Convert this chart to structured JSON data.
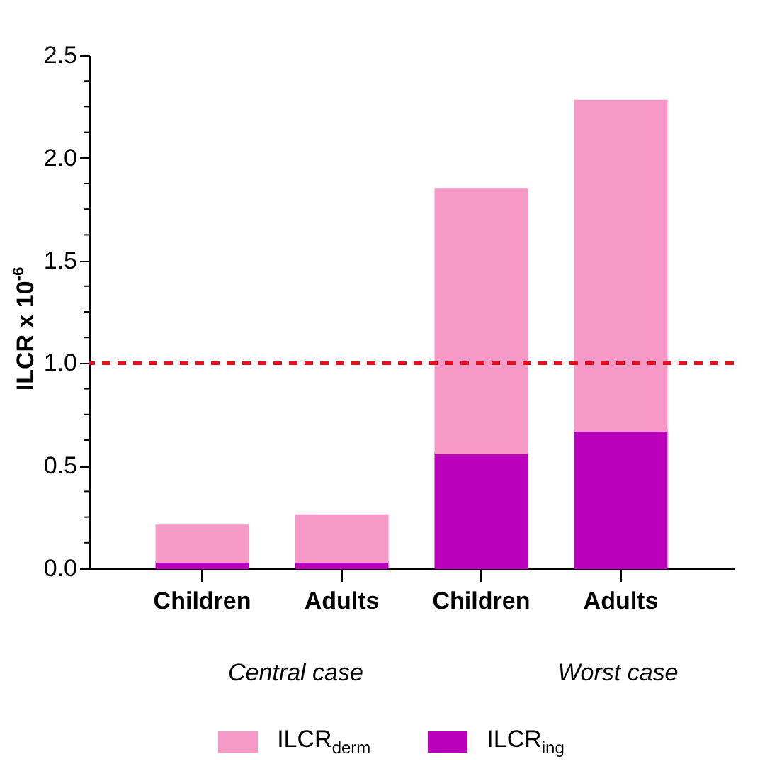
{
  "chart_data": {
    "type": "bar",
    "stacked": true,
    "ylabel": "ILCR x 10$^{-6}$",
    "categories": [
      "Children",
      "Adults",
      "Children",
      "Adults"
    ],
    "series": [
      {
        "name": "ILCR$_{ing}$",
        "color": "#bb00bb",
        "values": [
          0.03,
          0.03,
          0.56,
          0.67
        ]
      },
      {
        "name": "ILCR$_{derm}$",
        "color": "#f799c6",
        "values": [
          0.18,
          0.23,
          1.29,
          1.61
        ]
      }
    ],
    "ylim": [
      0,
      2.5
    ],
    "yticks": [
      {
        "value": 0,
        "label": "0.0"
      },
      {
        "value": 0.125,
        "label": null
      },
      {
        "value": 0.25,
        "label": null
      },
      {
        "value": 0.375,
        "label": null
      },
      0.5,
      {
        "value": 0.625,
        "label": null
      },
      {
        "value": 0.75,
        "label": null
      },
      {
        "value": 0.875,
        "label": null
      },
      {
        "value": 1,
        "label": "1.0"
      },
      {
        "value": 1.125,
        "label": null
      },
      {
        "value": 1.25,
        "label": null
      },
      {
        "value": 1.375,
        "label": null
      },
      1.5,
      {
        "value": 1.625,
        "label": null
      },
      {
        "value": 1.75,
        "label": null
      },
      {
        "value": 1.875,
        "label": null
      },
      {
        "value": 2,
        "label": "2.0"
      },
      {
        "value": 2.125,
        "label": null
      },
      {
        "value": 2.25,
        "label": null
      },
      {
        "value": 2.375,
        "label": null
      },
      2.5
    ],
    "ref_lines": [
      {
        "axis": "y",
        "value": 1,
        "color": "#e8111b",
        "line_style": "dashed"
      }
    ],
    "annotations": [
      "Central case",
      "Worst case"
    ],
    "legend": "bottom",
    "grid": false
  }
}
